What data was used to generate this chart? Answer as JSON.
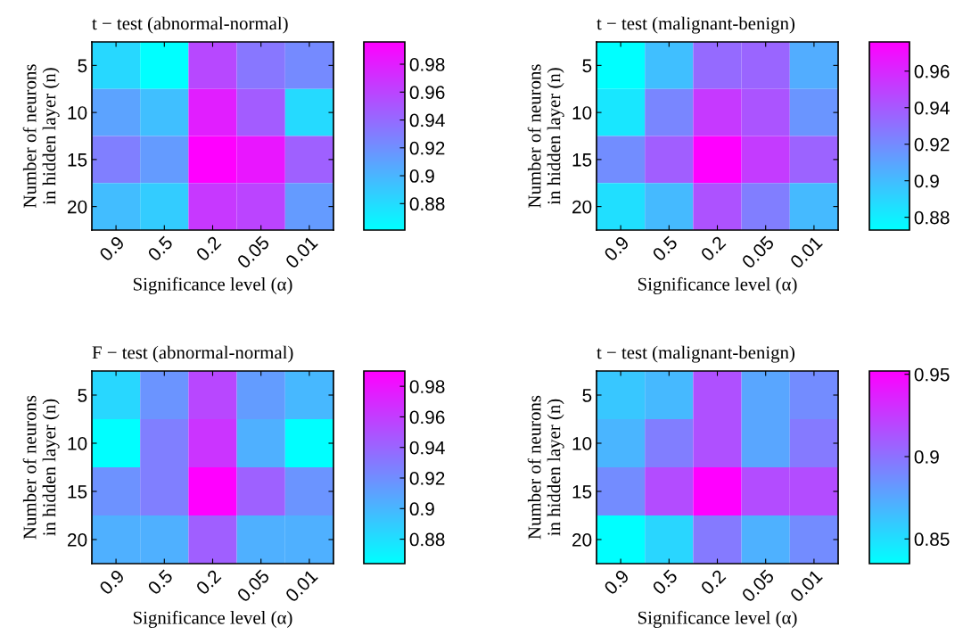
{
  "chart_data": [
    {
      "type": "heatmap",
      "title": "t − test (abnormal-normal)",
      "xlabel": "Significance level (α)",
      "ylabel": "Number of neurons\nin hidden layer (n)",
      "categories": [
        "0.9",
        "0.5",
        "0.2",
        "0.05",
        "0.01"
      ],
      "y_categories": [
        "5",
        "10",
        "15",
        "20"
      ],
      "cells": [
        [
          0.882,
          0.861,
          0.958,
          0.933,
          0.923
        ],
        [
          0.91,
          0.895,
          0.98,
          0.947,
          0.881
        ],
        [
          0.929,
          0.914,
          0.996,
          0.984,
          0.945
        ],
        [
          0.896,
          0.888,
          0.966,
          0.96,
          0.914
        ]
      ],
      "clim": [
        0.861,
        0.996
      ],
      "cticks": [
        0.88,
        0.9,
        0.92,
        0.94,
        0.96,
        0.98
      ]
    },
    {
      "type": "heatmap",
      "title": "t − test (malignant-benign)",
      "xlabel": "Significance level (α)",
      "ylabel": "Number of neurons\nin hidden layer (n)",
      "categories": [
        "0.9",
        "0.5",
        "0.2",
        "0.05",
        "0.01"
      ],
      "y_categories": [
        "5",
        "10",
        "15",
        "20"
      ],
      "cells": [
        [
          0.873,
          0.899,
          0.933,
          0.935,
          0.906
        ],
        [
          0.883,
          0.922,
          0.953,
          0.942,
          0.916
        ],
        [
          0.919,
          0.938,
          0.976,
          0.952,
          0.936
        ],
        [
          0.886,
          0.901,
          0.943,
          0.925,
          0.901
        ]
      ],
      "clim": [
        0.873,
        0.976
      ],
      "cticks": [
        0.88,
        0.9,
        0.92,
        0.94,
        0.96
      ]
    },
    {
      "type": "heatmap",
      "title": "F − test (abnormal-normal)",
      "xlabel": "Significance level (α)",
      "ylabel": "Number of neurons\nin hidden layer (n)",
      "categories": [
        "0.9",
        "0.5",
        "0.2",
        "0.05",
        "0.01"
      ],
      "y_categories": [
        "5",
        "10",
        "15",
        "20"
      ],
      "cells": [
        [
          0.884,
          0.917,
          0.955,
          0.913,
          0.899
        ],
        [
          0.864,
          0.927,
          0.964,
          0.903,
          0.864
        ],
        [
          0.918,
          0.927,
          0.99,
          0.942,
          0.917
        ],
        [
          0.903,
          0.903,
          0.943,
          0.903,
          0.903
        ]
      ],
      "clim": [
        0.864,
        0.99
      ],
      "cticks": [
        0.88,
        0.9,
        0.92,
        0.94,
        0.96,
        0.98
      ]
    },
    {
      "type": "heatmap",
      "title": "t − test (malignant-benign)",
      "xlabel": "Significance level (α)",
      "ylabel": "Number of neurons\nin hidden layer (n)",
      "categories": [
        "0.9",
        "0.5",
        "0.2",
        "0.05",
        "0.01"
      ],
      "y_categories": [
        "5",
        "10",
        "15",
        "20"
      ],
      "cells": [
        [
          0.861,
          0.867,
          0.915,
          0.876,
          0.888
        ],
        [
          0.869,
          0.894,
          0.915,
          0.876,
          0.896
        ],
        [
          0.888,
          0.917,
          0.952,
          0.917,
          0.917
        ],
        [
          0.835,
          0.854,
          0.896,
          0.871,
          0.888
        ]
      ],
      "clim": [
        0.835,
        0.952
      ],
      "cticks": [
        0.85,
        0.9,
        0.95
      ]
    }
  ]
}
